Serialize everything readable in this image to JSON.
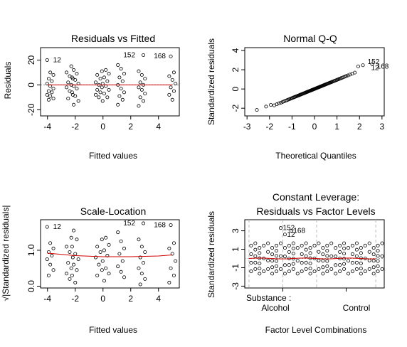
{
  "chart_data": [
    {
      "type": "scatter",
      "title": "Residuals vs Fitted",
      "xlabel": "Fitted values",
      "ylabel": "Residuals",
      "xlim": [
        -4.5,
        5.5
      ],
      "ylim": [
        -25,
        30
      ],
      "xticks": [
        "-4",
        "-2",
        "0",
        "2",
        "4"
      ],
      "xtick_values": [
        -4,
        -2,
        0,
        2,
        4
      ],
      "yticks": [
        "-20",
        "0",
        "20"
      ],
      "ytick_values": [
        -20,
        0,
        20
      ],
      "groups": [
        {
          "x": -3.8,
          "y": [
            20,
            10,
            8,
            5,
            3,
            1,
            -1,
            -3,
            -5,
            -6,
            -8,
            -9,
            -11,
            -12
          ]
        },
        {
          "x": -2.4,
          "y": [
            15,
            10,
            7,
            5,
            2,
            0,
            -2,
            -5,
            -8,
            -11
          ]
        },
        {
          "x": -2.0,
          "y": [
            12,
            9,
            6,
            4,
            1,
            -1,
            -3,
            -6,
            -9,
            -13,
            -16
          ]
        },
        {
          "x": -0.3,
          "y": [
            11,
            8,
            5,
            2,
            0,
            -2,
            -4,
            -6,
            -8,
            -10
          ]
        },
        {
          "x": 0.2,
          "y": [
            12,
            9,
            6,
            3,
            1,
            -1,
            -4,
            -7,
            -10,
            -13
          ]
        },
        {
          "x": 1.3,
          "y": [
            16,
            13,
            9,
            6,
            3,
            0,
            -3,
            -6,
            -9,
            -12,
            -16
          ]
        },
        {
          "x": 2.8,
          "y": [
            24,
            11,
            8,
            5,
            2,
            0,
            -2,
            -4,
            -7,
            -10,
            -13,
            -17
          ]
        },
        {
          "x": 5.0,
          "y": [
            23,
            10,
            7,
            4,
            1,
            -2,
            -5,
            -8,
            -12
          ]
        }
      ],
      "labeled_points": [
        {
          "x": -3.8,
          "y": 20,
          "label": "12"
        },
        {
          "x": 2.8,
          "y": 24,
          "label": "152"
        },
        {
          "x": 5.0,
          "y": 23,
          "label": "168"
        }
      ],
      "smoother": {
        "x": [
          -4,
          5
        ],
        "y": [
          0,
          0
        ]
      }
    },
    {
      "type": "scatter",
      "title": "Normal Q-Q",
      "xlabel": "Theoretical Quantiles",
      "ylabel": "Standardized residuals",
      "xlim": [
        -3.1,
        3.1
      ],
      "ylim": [
        -2.8,
        4.3
      ],
      "xticks": [
        "-3",
        "-2",
        "-1",
        "0",
        "1",
        "2",
        "3"
      ],
      "xtick_values": [
        -3,
        -2,
        -1,
        0,
        1,
        2,
        3
      ],
      "yticks": [
        "-2",
        "0",
        "2",
        "4"
      ],
      "ytick_values": [
        -2,
        0,
        2,
        4
      ],
      "n_points": 96,
      "labeled_points": [
        {
          "x": 2.55,
          "y": 2.6,
          "label": "152"
        },
        {
          "x": 2.9,
          "y": 2.5,
          "label": "168"
        },
        {
          "x": 2.45,
          "y": 2.2,
          "label": "12"
        }
      ]
    },
    {
      "type": "scatter",
      "title": "Scale-Location",
      "xlabel": "Fitted values",
      "ylabel": "√|Standardized residuals|",
      "xlim": [
        -4.5,
        5.5
      ],
      "ylim": [
        -0.05,
        1.85
      ],
      "xticks": [
        "-4",
        "-2",
        "0",
        "2",
        "4"
      ],
      "xtick_values": [
        -4,
        -2,
        0,
        2,
        4
      ],
      "yticks": [
        "0.0",
        "1.0"
      ],
      "ytick_values": [
        0,
        1
      ],
      "groups": [
        {
          "x": -3.8,
          "y": [
            1.65,
            1.2,
            1.05,
            0.95,
            0.85,
            0.75,
            0.6,
            0.45,
            0.3
          ]
        },
        {
          "x": -2.4,
          "y": [
            1.35,
            1.1,
            0.95,
            0.8,
            0.65,
            0.5,
            0.35,
            0.2
          ]
        },
        {
          "x": -2.0,
          "y": [
            1.55,
            1.3,
            1.1,
            0.9,
            0.75,
            0.6,
            0.45,
            0.3,
            0.1
          ]
        },
        {
          "x": -0.3,
          "y": [
            1.3,
            1.1,
            0.95,
            0.8,
            0.6,
            0.45,
            0.3
          ]
        },
        {
          "x": 0.2,
          "y": [
            1.35,
            1.15,
            1.0,
            0.85,
            0.7,
            0.5,
            0.35,
            0.15
          ]
        },
        {
          "x": 1.3,
          "y": [
            1.5,
            1.25,
            1.05,
            0.9,
            0.7,
            0.55,
            0.4,
            0.25
          ]
        },
        {
          "x": 2.8,
          "y": [
            1.75,
            1.3,
            1.1,
            0.95,
            0.8,
            0.65,
            0.5,
            0.35,
            0.2,
            0.05
          ]
        },
        {
          "x": 5.0,
          "y": [
            1.7,
            1.2,
            1.05,
            0.9,
            0.7,
            0.5,
            0.3,
            0.1
          ]
        }
      ],
      "labeled_points": [
        {
          "x": -3.8,
          "y": 1.65,
          "label": "12"
        },
        {
          "x": 2.8,
          "y": 1.75,
          "label": "152"
        },
        {
          "x": 5.0,
          "y": 1.7,
          "label": "168"
        }
      ],
      "smoother": {
        "x": [
          -4,
          -2,
          0,
          2,
          4,
          5
        ],
        "y": [
          0.92,
          0.85,
          0.82,
          0.82,
          0.84,
          0.87
        ]
      }
    },
    {
      "type": "scatter",
      "title": "Constant Leverage:",
      "subtitle": "Residuals vs Factor Levels",
      "xlabel": "Factor Level Combinations",
      "ylabel": "Standardized residuals",
      "factor_label": "Substance :",
      "factor_levels": [
        "Alcohol",
        "Control"
      ],
      "xlim": [
        0,
        33
      ],
      "ylim": [
        -3.2,
        4.2
      ],
      "yticks": [
        "-3",
        "-1",
        "1",
        "3"
      ],
      "ytick_values": [
        -3,
        -1,
        1,
        3
      ],
      "n_columns": 32,
      "separators": [
        1,
        9,
        17,
        31
      ],
      "labeled_points": [
        {
          "x": 8.5,
          "y": 3.3,
          "label": "152"
        },
        {
          "x": 11,
          "y": 3.0,
          "label": "168"
        },
        {
          "x": 9.5,
          "y": 2.6,
          "label": "12"
        }
      ],
      "smoother_y": 0
    }
  ]
}
